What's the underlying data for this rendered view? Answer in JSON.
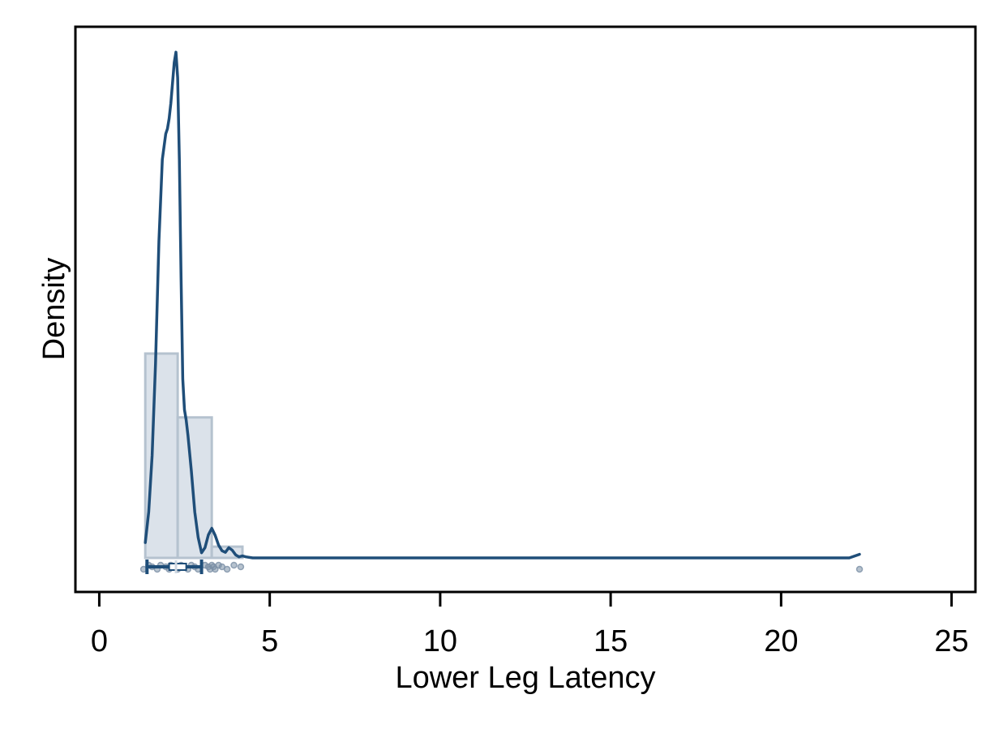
{
  "chart_data": {
    "type": "histogram-density",
    "title": "",
    "xlabel": "Lower Leg Latency",
    "ylabel": "Density",
    "xlim": [
      -0.7,
      25.7
    ],
    "x_ticks": [
      0,
      5,
      10,
      15,
      20,
      25
    ],
    "y_ticks": [],
    "grid": false,
    "legend": "none",
    "colors": {
      "density_line": "#1f4e79",
      "bar_fill": "#dbe2ea",
      "bar_stroke": "#b5c2cf",
      "points": "#7a8fa5",
      "boxplot": "#1f4e79"
    },
    "histogram": {
      "bins": [
        {
          "x0": 1.35,
          "x1": 2.3,
          "density": 0.4
        },
        {
          "x0": 2.3,
          "x1": 3.3,
          "density": 0.275
        },
        {
          "x0": 3.3,
          "x1": 4.2,
          "density": 0.022
        }
      ]
    },
    "density_curve": {
      "x": [
        1.35,
        1.45,
        1.55,
        1.65,
        1.75,
        1.85,
        1.95,
        2.0,
        2.05,
        2.1,
        2.15,
        2.2,
        2.25,
        2.3,
        2.35,
        2.4,
        2.45,
        2.5,
        2.55,
        2.6,
        2.7,
        2.8,
        2.9,
        3.0,
        3.1,
        3.2,
        3.3,
        3.4,
        3.5,
        3.6,
        3.7,
        3.8,
        3.9,
        4.0,
        4.1,
        4.2,
        4.3,
        4.5,
        5.0,
        10.0,
        15.0,
        20.0,
        22.0,
        22.3
      ],
      "y": [
        0.03,
        0.09,
        0.2,
        0.38,
        0.62,
        0.78,
        0.83,
        0.84,
        0.86,
        0.89,
        0.93,
        0.97,
        0.99,
        0.94,
        0.78,
        0.55,
        0.35,
        0.29,
        0.27,
        0.24,
        0.17,
        0.09,
        0.04,
        0.01,
        0.02,
        0.045,
        0.058,
        0.044,
        0.025,
        0.014,
        0.011,
        0.02,
        0.015,
        0.006,
        0.002,
        0.004,
        0.002,
        0.0,
        0.0,
        0.0,
        0.0,
        0.0,
        0.0,
        0.007
      ]
    },
    "boxplot": {
      "whisker_low": 1.4,
      "q1": 2.05,
      "median": 2.25,
      "q3": 2.55,
      "whisker_high": 3.0
    },
    "points": [
      1.3,
      1.45,
      1.55,
      1.7,
      1.8,
      1.95,
      2.05,
      2.1,
      2.2,
      2.3,
      2.4,
      2.5,
      2.6,
      2.7,
      2.8,
      2.9,
      3.1,
      3.2,
      3.25,
      3.3,
      3.35,
      3.4,
      3.5,
      3.6,
      3.75,
      3.95,
      4.15,
      22.3
    ]
  }
}
